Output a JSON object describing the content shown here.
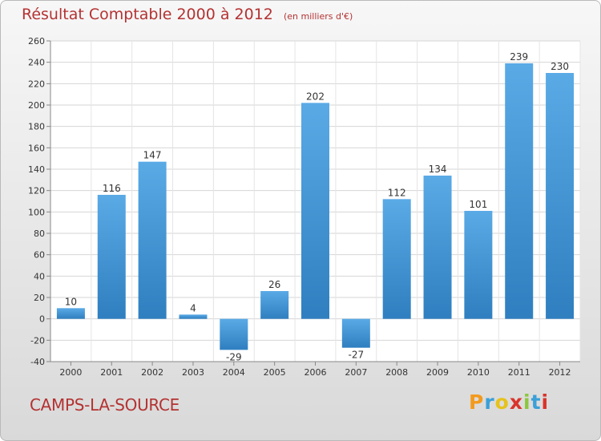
{
  "title": "Résultat Comptable 2000 à 2012",
  "subtitle": "(en milliers d'€)",
  "commune": "CAMPS-LA-SOURCE",
  "brand": {
    "letters": [
      "P",
      "r",
      "o",
      "x",
      "i",
      "t",
      "i"
    ],
    "colors": [
      "#f39a1e",
      "#3aa0d8",
      "#e6c21c",
      "#d9342b",
      "#8cc63f",
      "#3aa0d8",
      "#d9342b"
    ]
  },
  "colors": {
    "bar_top": "#5aaae6",
    "bar_bottom": "#2f7fc0",
    "title": "#b43232"
  },
  "chart_data": {
    "type": "bar",
    "categories": [
      "2000",
      "2001",
      "2002",
      "2003",
      "2004",
      "2005",
      "2006",
      "2007",
      "2008",
      "2009",
      "2010",
      "2011",
      "2012"
    ],
    "values": [
      10,
      116,
      147,
      4,
      -29,
      26,
      202,
      -27,
      112,
      134,
      101,
      239,
      230
    ],
    "ylim": [
      -40,
      260
    ],
    "yticks": [
      -40,
      -20,
      0,
      20,
      40,
      60,
      80,
      100,
      120,
      140,
      160,
      180,
      200,
      220,
      240,
      260
    ],
    "grid": true
  }
}
